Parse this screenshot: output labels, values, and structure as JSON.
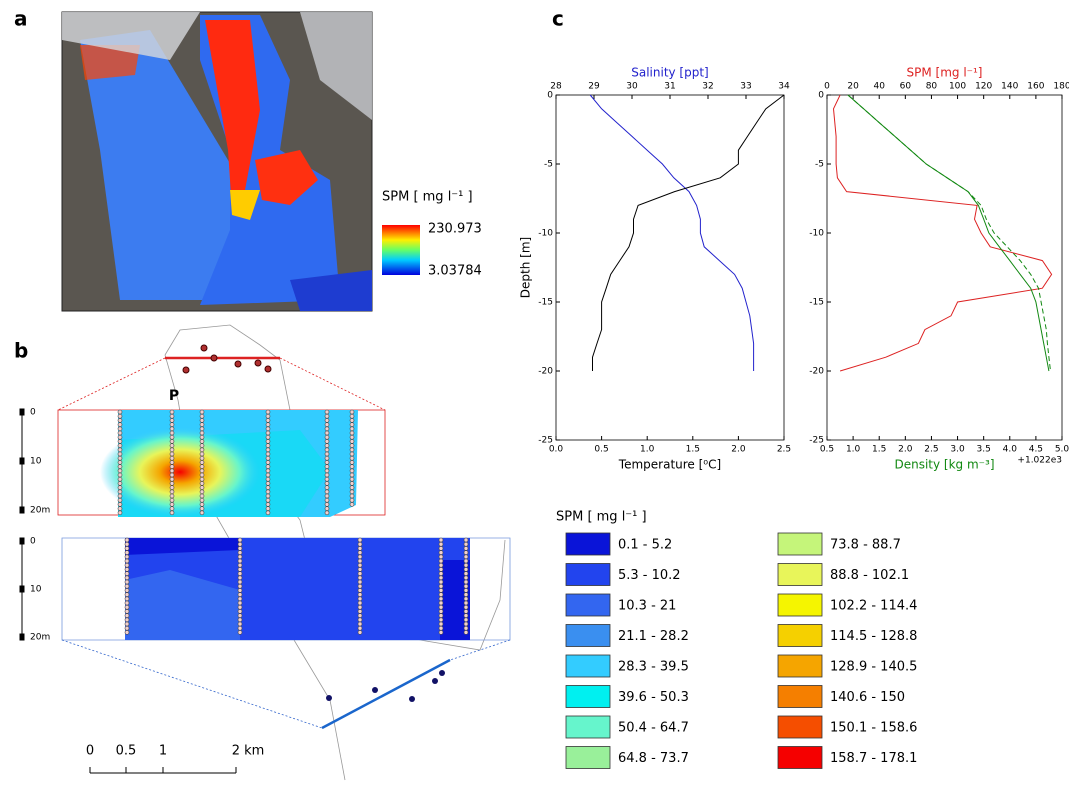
{
  "panel_labels": [
    "a",
    "b",
    "c"
  ],
  "panel_a": {
    "colorbar_title": "SPM  [ mg l⁻¹ ]",
    "colorbar_max": "230.973",
    "colorbar_min": "3.03784"
  },
  "panel_b": {
    "station_label": "P",
    "depth_labels_top": [
      "0",
      "10",
      "20m"
    ],
    "depth_labels_bottom": [
      "0",
      "10",
      "20m"
    ],
    "scale_labels": [
      "0",
      "0.5",
      "1",
      "2 km"
    ]
  },
  "legend": {
    "title": "SPM  [ mg l⁻¹ ]",
    "entries": [
      {
        "label": "0.1 - 5.2",
        "color": "#0a14d8"
      },
      {
        "label": "5.3 - 10.2",
        "color": "#2244ee"
      },
      {
        "label": "10.3 - 21",
        "color": "#3366f0"
      },
      {
        "label": "21.1 - 28.2",
        "color": "#3a8ff0"
      },
      {
        "label": "28.3 - 39.5",
        "color": "#33ccff"
      },
      {
        "label": "39.6 - 50.3",
        "color": "#00f0f0"
      },
      {
        "label": "50.4 - 64.7",
        "color": "#66f5cc"
      },
      {
        "label": "64.8 - 73.7",
        "color": "#99f09a"
      },
      {
        "label": "73.8 - 88.7",
        "color": "#c5f57a"
      },
      {
        "label": "88.8 - 102.1",
        "color": "#e8f55a"
      },
      {
        "label": "102.2 - 114.4",
        "color": "#f5f500"
      },
      {
        "label": "114.5 - 128.8",
        "color": "#f5d000"
      },
      {
        "label": "128.9 - 140.5",
        "color": "#f5a500"
      },
      {
        "label": "140.6 - 150",
        "color": "#f57f00"
      },
      {
        "label": "150.1 - 158.6",
        "color": "#f54e00"
      },
      {
        "label": "158.7 - 178.1",
        "color": "#f50000"
      }
    ]
  },
  "chart_data": [
    {
      "type": "line",
      "ylabel": "Depth [m]",
      "xlabel": "Temperature [⁰C]",
      "xlabel_color": "#000000",
      "x2label": "Salinity [ppt]",
      "x2label_color": "#2222cc",
      "xlim": [
        0,
        2.5
      ],
      "xticks": [
        {
          "value": 0,
          "label": "0.0"
        },
        0.5,
        {
          "value": 1,
          "label": "1.0"
        },
        1.5,
        {
          "value": 2,
          "label": "2.0"
        },
        2.5
      ],
      "x2lim": [
        28,
        34
      ],
      "x2ticks": [
        28,
        29,
        30,
        31,
        32,
        33,
        34
      ],
      "ylim": [
        -25,
        0
      ],
      "yticks": [
        0,
        -5,
        -10,
        -15,
        -20,
        -25
      ],
      "y": [
        0,
        -1,
        -2,
        -3,
        -4,
        -5,
        -6,
        -7,
        -8,
        -9,
        -10,
        -11,
        -12,
        -13,
        -14,
        -15,
        -16,
        -17,
        -18,
        -19,
        -20
      ],
      "series": [
        {
          "color": "#2222cc",
          "axis": "x2",
          "values": [
            28.9,
            29.2,
            29.6,
            30.0,
            30.4,
            30.8,
            31.1,
            31.5,
            31.7,
            31.8,
            31.8,
            31.9,
            32.3,
            32.7,
            32.9,
            33.0,
            33.1,
            33.15,
            33.2,
            33.2,
            33.2
          ]
        },
        {
          "color": "#000000",
          "axis": "x",
          "values": [
            2.5,
            2.3,
            2.2,
            2.1,
            2.0,
            2.0,
            1.8,
            1.3,
            0.9,
            0.85,
            0.85,
            0.8,
            0.7,
            0.6,
            0.55,
            0.5,
            0.5,
            0.5,
            0.45,
            0.4,
            0.4
          ]
        }
      ]
    },
    {
      "type": "line",
      "xlabel": "Density [kg m⁻³]",
      "xlabel_color": "#118811",
      "x_offset_text": "+1.022e3",
      "x2label": "SPM [mg l⁻¹]",
      "x2label_color": "#dd2222",
      "xlim": [
        0.5,
        5.0
      ],
      "xticks": [
        0.5,
        {
          "value": 1,
          "label": "1.0"
        },
        1.5,
        {
          "value": 2,
          "label": "2.0"
        },
        2.5,
        {
          "value": 3,
          "label": "3.0"
        },
        3.5,
        {
          "value": 4,
          "label": "4.0"
        },
        4.5,
        {
          "value": 5,
          "label": "5.0"
        }
      ],
      "x2lim": [
        0,
        180
      ],
      "x2ticks": [
        0,
        20,
        40,
        60,
        80,
        100,
        120,
        140,
        160,
        180
      ],
      "ylim": [
        -25,
        0
      ],
      "yticks": [
        0,
        -5,
        -10,
        -15,
        -20,
        -25
      ],
      "y": [
        0,
        -1,
        -2,
        -3,
        -4,
        -5,
        -6,
        -7,
        -8,
        -9,
        -10,
        -11,
        -12,
        -13,
        -14,
        -15,
        -16,
        -17,
        -18,
        -19,
        -20
      ],
      "series": [
        {
          "color": "#dd2222",
          "axis": "x2",
          "values": [
            10,
            5,
            6,
            7,
            7,
            7,
            8,
            15,
            115,
            113,
            118,
            125,
            165,
            172,
            165,
            100,
            95,
            75,
            70,
            45,
            10
          ]
        },
        {
          "color": "#118811",
          "axis": "x",
          "values": [
            0.9,
            1.2,
            1.5,
            1.8,
            2.1,
            2.4,
            2.8,
            3.2,
            3.4,
            3.5,
            3.6,
            3.8,
            4.0,
            4.2,
            4.4,
            4.5,
            4.55,
            4.6,
            4.65,
            4.7,
            4.75
          ]
        },
        {
          "color": "#118811",
          "axis": "x",
          "dashed": true,
          "values": [
            0.9,
            1.2,
            1.5,
            1.8,
            2.1,
            2.4,
            2.8,
            3.2,
            3.45,
            3.55,
            3.7,
            3.95,
            4.2,
            4.4,
            4.55,
            4.6,
            4.65,
            4.7,
            4.72,
            4.75,
            4.78
          ]
        }
      ]
    }
  ]
}
